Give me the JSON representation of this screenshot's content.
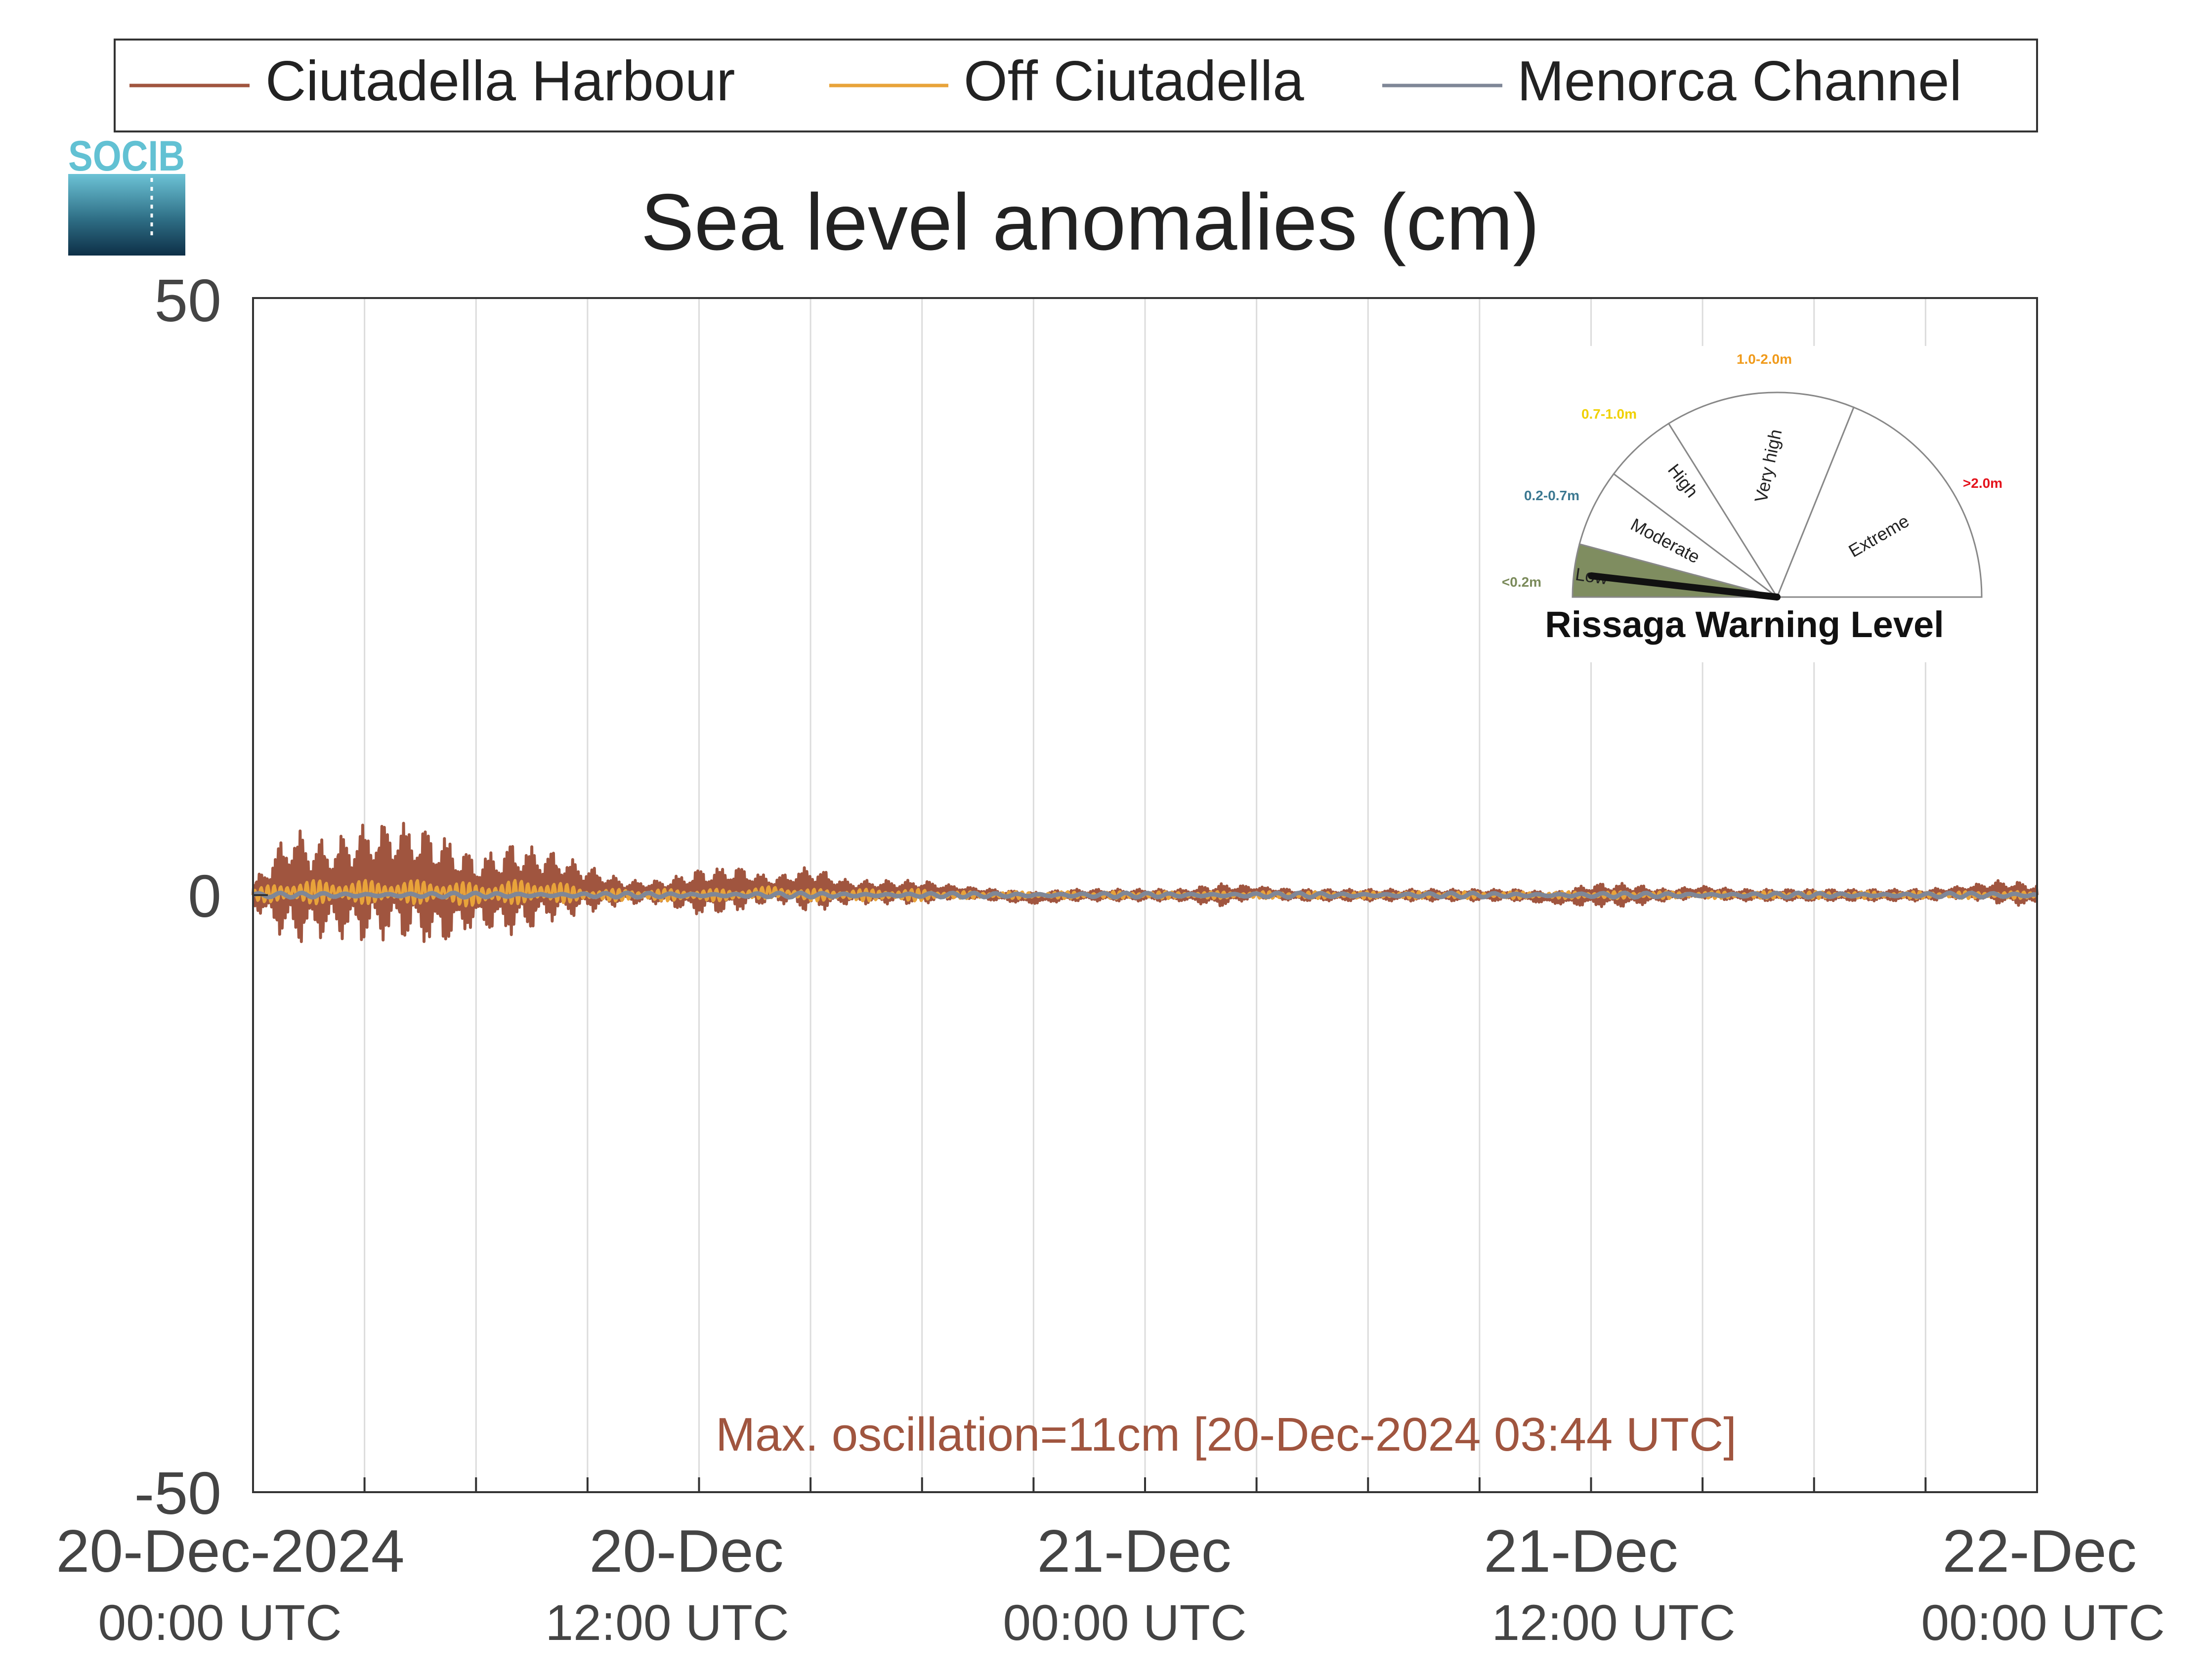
{
  "legend": {
    "entries": [
      {
        "name": "Ciutadella Harbour",
        "color": "#a0553f"
      },
      {
        "name": "Off Ciutadella",
        "color": "#e8a33a"
      },
      {
        "name": "Menorca Channel",
        "color": "#7f8797"
      }
    ]
  },
  "logo": {
    "text": "SOCIB"
  },
  "chart_data": {
    "type": "line",
    "title": "Sea level anomalies (cm)",
    "xlabel": "",
    "ylabel": "",
    "ylim": [
      -50,
      50
    ],
    "yticks": [
      "50",
      "0",
      "-50"
    ],
    "xlim": [
      "2024-12-20 00:00",
      "2024-12-22 00:00"
    ],
    "x_tick_labels": [
      {
        "date": "20-Dec-2024",
        "time": "00:00 UTC"
      },
      {
        "date": "20-Dec",
        "time": "12:00 UTC"
      },
      {
        "date": "21-Dec",
        "time": "00:00 UTC"
      },
      {
        "date": "21-Dec",
        "time": "12:00 UTC"
      },
      {
        "date": "22-Dec",
        "time": "00:00 UTC"
      }
    ],
    "grid": "vertical, every 3 hours",
    "legend_position": "top, outside",
    "series": [
      {
        "name": "Ciutadella Harbour",
        "color": "#a0553f",
        "x": [
          "2024-12-20 00:00",
          "2024-12-20 01:00",
          "2024-12-20 02:00",
          "2024-12-20 03:00",
          "2024-12-20 04:00",
          "2024-12-20 05:00",
          "2024-12-20 06:00",
          "2024-12-20 07:00",
          "2024-12-20 08:00",
          "2024-12-20 09:00",
          "2024-12-20 10:00",
          "2024-12-20 11:00",
          "2024-12-20 12:00",
          "2024-12-20 13:00",
          "2024-12-20 14:00",
          "2024-12-20 15:00",
          "2024-12-20 16:00",
          "2024-12-20 17:00",
          "2024-12-20 18:00",
          "2024-12-20 19:00",
          "2024-12-20 20:00",
          "2024-12-20 21:00",
          "2024-12-20 22:00",
          "2024-12-20 23:00",
          "2024-12-21 00:00",
          "2024-12-21 01:00",
          "2024-12-21 02:00",
          "2024-12-21 03:00",
          "2024-12-21 04:00",
          "2024-12-21 05:00",
          "2024-12-21 06:00",
          "2024-12-21 07:00",
          "2024-12-21 08:00",
          "2024-12-21 09:00",
          "2024-12-21 10:00",
          "2024-12-21 11:00",
          "2024-12-21 12:00",
          "2024-12-21 13:00",
          "2024-12-21 14:00",
          "2024-12-21 15:00",
          "2024-12-21 16:00",
          "2024-12-21 17:00",
          "2024-12-21 18:00",
          "2024-12-21 19:00",
          "2024-12-21 20:00",
          "2024-12-21 21:00",
          "2024-12-21 22:00",
          "2024-12-21 23:00",
          "2024-12-22 00:00"
        ],
        "y": [
          0,
          3,
          2,
          4,
          5,
          2,
          1,
          2,
          3,
          2,
          1,
          1,
          1,
          2,
          2,
          2,
          1,
          1,
          1,
          1,
          0,
          -1,
          0,
          0,
          0,
          0,
          0,
          1,
          0,
          0,
          0,
          0,
          0,
          0,
          0,
          -1,
          0,
          0,
          0,
          1,
          0,
          0,
          0,
          0,
          0,
          0,
          1,
          1,
          0
        ],
        "amplitude": [
          1,
          5,
          4,
          5,
          5,
          5,
          3,
          4,
          3,
          2,
          1,
          1,
          2,
          2,
          1,
          2,
          1,
          1,
          1,
          0.5,
          0.5,
          0.5,
          0.5,
          0.5,
          0.5,
          0.5,
          1,
          0.5,
          0.5,
          0.5,
          0.5,
          0.5,
          0.5,
          0.5,
          0.5,
          0.5,
          1,
          1,
          0.5,
          0.5,
          0.5,
          0.5,
          0.5,
          0.5,
          0.5,
          0.5,
          0.5,
          1,
          1
        ]
      },
      {
        "name": "Off Ciutadella",
        "color": "#e8a33a",
        "x": [
          "2024-12-20 00:00",
          "2024-12-20 01:00",
          "2024-12-20 02:00",
          "2024-12-20 03:00",
          "2024-12-20 04:00",
          "2024-12-20 05:00",
          "2024-12-20 06:00",
          "2024-12-20 07:00",
          "2024-12-20 08:00",
          "2024-12-20 09:00",
          "2024-12-20 10:00",
          "2024-12-20 11:00",
          "2024-12-20 12:00",
          "2024-12-20 13:00",
          "2024-12-20 14:00",
          "2024-12-20 15:00",
          "2024-12-20 16:00",
          "2024-12-20 17:00",
          "2024-12-20 18:00",
          "2024-12-20 19:00",
          "2024-12-20 20:00",
          "2024-12-20 21:00",
          "2024-12-20 22:00",
          "2024-12-20 23:00",
          "2024-12-21 00:00",
          "2024-12-21 01:00",
          "2024-12-21 02:00",
          "2024-12-21 03:00",
          "2024-12-21 04:00",
          "2024-12-21 05:00",
          "2024-12-21 06:00",
          "2024-12-21 07:00",
          "2024-12-21 08:00",
          "2024-12-21 09:00",
          "2024-12-21 10:00",
          "2024-12-21 11:00",
          "2024-12-21 12:00",
          "2024-12-21 13:00",
          "2024-12-21 14:00",
          "2024-12-21 15:00",
          "2024-12-21 16:00",
          "2024-12-21 17:00",
          "2024-12-21 18:00",
          "2024-12-21 19:00",
          "2024-12-21 20:00",
          "2024-12-21 21:00",
          "2024-12-21 22:00",
          "2024-12-21 23:00",
          "2024-12-22 00:00"
        ],
        "y": [
          0,
          1,
          1,
          1,
          1,
          1,
          0,
          1,
          1,
          0,
          0,
          0,
          0,
          0,
          1,
          0,
          0,
          0,
          0,
          0,
          0,
          0,
          0,
          0,
          0,
          0,
          0,
          0,
          0,
          0,
          0,
          0,
          0,
          0,
          0,
          0,
          0,
          0,
          0,
          0,
          0,
          0,
          0,
          0,
          0,
          0,
          0,
          0,
          0
        ],
        "amplitude": [
          0.5,
          1,
          1,
          1,
          1,
          1,
          1,
          1,
          1,
          0.5,
          0.5,
          0.5,
          0.5,
          0.5,
          0.5,
          0.5,
          0.5,
          0.5,
          0.5,
          0.3,
          0.3,
          0.3,
          0.3,
          0.3,
          0.3,
          0.3,
          0.3,
          0.3,
          0.3,
          0.3,
          0.3,
          0.3,
          0.3,
          0.3,
          0.3,
          0.3,
          0.3,
          0.3,
          0.3,
          0.3,
          0.3,
          0.3,
          0.3,
          0.3,
          0.3,
          0.3,
          0.3,
          0.3,
          0.3
        ]
      },
      {
        "name": "Menorca Channel",
        "color": "#7f8797",
        "x": [
          "2024-12-20 00:00",
          "2024-12-20 01:00",
          "2024-12-20 02:00",
          "2024-12-20 03:00",
          "2024-12-20 04:00",
          "2024-12-20 05:00",
          "2024-12-20 06:00",
          "2024-12-20 07:00",
          "2024-12-20 08:00",
          "2024-12-20 09:00",
          "2024-12-20 10:00",
          "2024-12-20 11:00",
          "2024-12-20 12:00",
          "2024-12-20 13:00",
          "2024-12-20 14:00",
          "2024-12-20 15:00",
          "2024-12-20 16:00",
          "2024-12-20 17:00",
          "2024-12-20 18:00",
          "2024-12-20 19:00",
          "2024-12-20 20:00",
          "2024-12-20 21:00",
          "2024-12-20 22:00",
          "2024-12-20 23:00",
          "2024-12-21 00:00",
          "2024-12-21 01:00",
          "2024-12-21 02:00",
          "2024-12-21 03:00",
          "2024-12-21 04:00",
          "2024-12-21 05:00",
          "2024-12-21 06:00",
          "2024-12-21 07:00",
          "2024-12-21 08:00",
          "2024-12-21 09:00",
          "2024-12-21 10:00",
          "2024-12-21 11:00",
          "2024-12-21 12:00",
          "2024-12-21 13:00",
          "2024-12-21 14:00",
          "2024-12-21 15:00",
          "2024-12-21 16:00",
          "2024-12-21 17:00",
          "2024-12-21 18:00",
          "2024-12-21 19:00",
          "2024-12-21 20:00",
          "2024-12-21 21:00",
          "2024-12-21 22:00",
          "2024-12-21 23:00",
          "2024-12-22 00:00"
        ],
        "y": [
          0,
          0,
          0,
          0,
          0,
          0,
          0,
          0,
          0,
          0,
          0,
          0,
          0,
          0,
          0,
          0,
          0,
          0,
          0,
          0,
          0,
          0,
          0,
          0,
          0,
          0,
          0,
          0,
          0,
          0,
          0,
          0,
          0,
          0,
          0,
          0,
          0,
          0,
          0,
          0,
          0,
          0,
          0,
          0,
          0,
          0,
          0,
          0,
          0
        ],
        "amplitude": [
          0.2,
          0.2,
          0.2,
          0.2,
          0.2,
          0.2,
          0.2,
          0.2,
          0.2,
          0.2,
          0.2,
          0.2,
          0.2,
          0.2,
          0.2,
          0.2,
          0.2,
          0.2,
          0.2,
          0.2,
          0.2,
          0.2,
          0.2,
          0.2,
          0.2,
          0.2,
          0.2,
          0.2,
          0.2,
          0.2,
          0.2,
          0.2,
          0.2,
          0.2,
          0.2,
          0.2,
          0.2,
          0.2,
          0.2,
          0.2,
          0.2,
          0.2,
          0.2,
          0.2,
          0.2,
          0.2,
          0.2,
          0.2,
          0.2
        ]
      }
    ],
    "annotation": {
      "text": "Max. oscillation=11cm [20-Dec-2024 03:44 UTC]",
      "color": "#a0553f"
    }
  },
  "gauge": {
    "title": "Rissaga Warning Level",
    "current_level": "Low",
    "sectors": [
      {
        "label": "Low",
        "range": "<0.2m",
        "range_color": "#7a8a5a",
        "active": true,
        "fill": "#7f8d60"
      },
      {
        "label": "Moderate",
        "range": "0.2-0.7m",
        "range_color": "#3b7891",
        "active": false
      },
      {
        "label": "High",
        "range": "0.7-1.0m",
        "range_color": "#f0d000",
        "active": false
      },
      {
        "label": "Very high",
        "range": "1.0-2.0m",
        "range_color": "#f09a1a",
        "active": false
      },
      {
        "label": "Extreme",
        "range": ">2.0m",
        "range_color": "#e4121b",
        "active": false
      }
    ]
  }
}
